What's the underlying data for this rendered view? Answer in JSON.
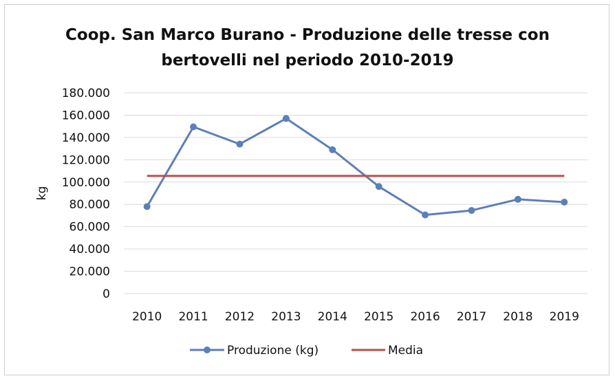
{
  "chart_data": {
    "type": "line",
    "title": "Coop. San Marco Burano - Produzione delle tresse con bertovelli nel periodo 2010-2019",
    "title_lines": [
      "Coop. San Marco Burano - Produzione delle tresse con",
      "bertovelli nel periodo 2010-2019"
    ],
    "ylabel": "kg",
    "xlabel": "",
    "x": [
      "2010",
      "2011",
      "2012",
      "2013",
      "2014",
      "2015",
      "2016",
      "2017",
      "2018",
      "2019"
    ],
    "ylim": [
      0,
      180000
    ],
    "yticks": [
      0,
      20000,
      40000,
      60000,
      80000,
      100000,
      120000,
      140000,
      160000,
      180000
    ],
    "ytick_labels": [
      "0",
      "20.000",
      "40.000",
      "60.000",
      "80.000",
      "100.000",
      "120.000",
      "140.000",
      "160.000",
      "180.000"
    ],
    "grid": true,
    "legend_position": "bottom",
    "series": [
      {
        "name": "Produzione (kg)",
        "color": "#5b7fb8",
        "marker": "circle",
        "values": [
          78000,
          149500,
          134000,
          157000,
          129000,
          96000,
          70500,
          74500,
          84500,
          82000
        ]
      },
      {
        "name": "Media",
        "color": "#b9504a",
        "marker": "none",
        "values": [
          105500,
          105500,
          105500,
          105500,
          105500,
          105500,
          105500,
          105500,
          105500,
          105500
        ]
      }
    ]
  }
}
